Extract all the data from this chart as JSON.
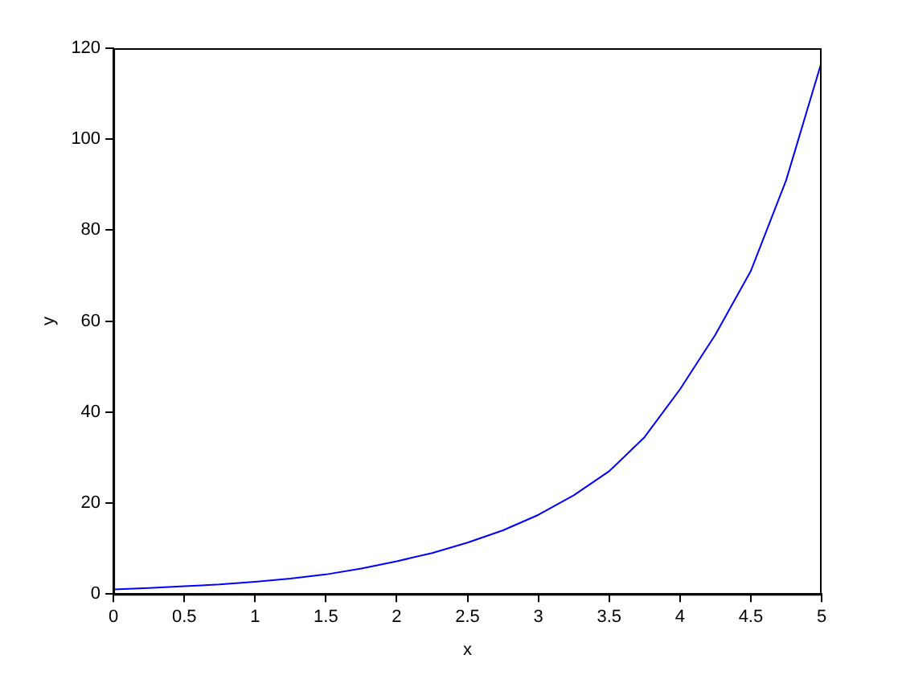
{
  "chart_data": {
    "type": "line",
    "xlabel": "x",
    "ylabel": "y",
    "x": [
      0,
      0.25,
      0.5,
      0.75,
      1,
      1.25,
      1.5,
      1.75,
      2,
      2.25,
      2.5,
      2.75,
      3,
      3.25,
      3.5,
      3.75,
      4,
      4.25,
      4.5,
      4.75,
      5
    ],
    "series": [
      {
        "color": "#0000ff",
        "values": [
          1,
          1.3,
          1.7,
          2.1,
          2.7,
          3.4,
          4.3,
          5.6,
          7.2,
          9,
          11.3,
          14,
          17.4,
          21.7,
          27,
          34.5,
          45,
          57,
          71,
          91,
          117
        ]
      }
    ],
    "xlim": [
      0,
      5
    ],
    "xticks": [
      0,
      0.5,
      1,
      1.5,
      2,
      2.5,
      3,
      3.5,
      4,
      4.5,
      5
    ],
    "ylim": [
      0,
      120
    ],
    "yticks": [
      0,
      20,
      40,
      60,
      80,
      100,
      120
    ],
    "grid": false,
    "legend": false,
    "marker": "none",
    "line_style": "solid"
  }
}
